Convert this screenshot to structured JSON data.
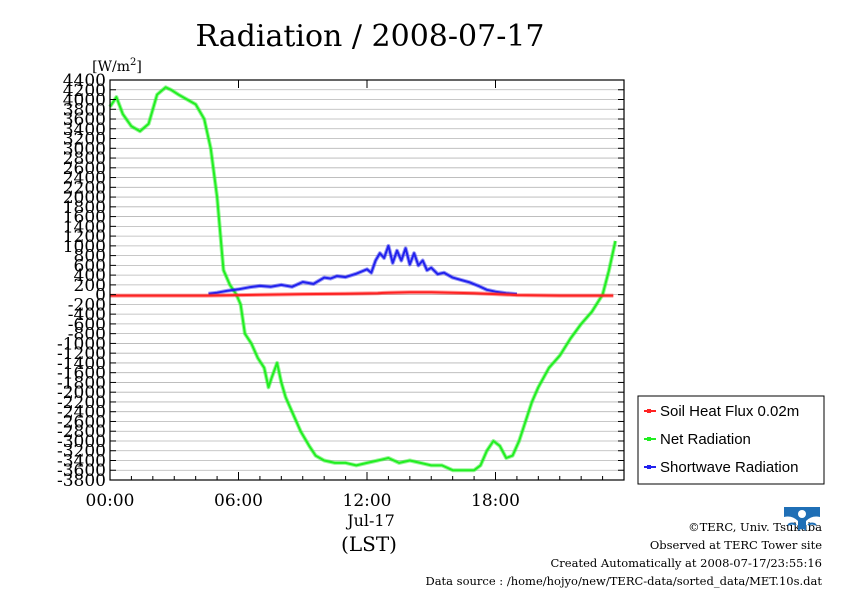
{
  "chart_data": {
    "type": "line",
    "title": "Radiation / 2008-07-17",
    "ylabel_unit": "[W/m",
    "ylabel_sup": "2",
    "ylabel_close": "]",
    "ylim": [
      -3800,
      4400
    ],
    "ytick_step": 200,
    "xlim": [
      0,
      24
    ],
    "xticks": [
      {
        "x": 0,
        "label": "00:00"
      },
      {
        "x": 6,
        "label": "06:00"
      },
      {
        "x": 12,
        "label": "12:00"
      },
      {
        "x": 18,
        "label": "18:00"
      }
    ],
    "xdate_label": "Jul-17",
    "xlabel": "(LST)",
    "grid": true,
    "legend_position": "right",
    "series": [
      {
        "name": "Soil Heat Flux 0.02m",
        "color": "#ff2222",
        "x": [
          0,
          4.5,
          6,
          9,
          11,
          12.5,
          13,
          14,
          15,
          16,
          17,
          18,
          19,
          21,
          23.5
        ],
        "y": [
          -20,
          -20,
          -10,
          10,
          20,
          30,
          40,
          50,
          50,
          40,
          30,
          10,
          -10,
          -20,
          -20
        ]
      },
      {
        "name": "Net Radiation",
        "color": "#22ee22",
        "x": [
          0,
          0.3,
          0.6,
          1.0,
          1.4,
          1.8,
          2.2,
          2.6,
          2.85,
          3.2,
          3.6,
          4.0,
          4.4,
          4.7,
          5.0,
          5.3,
          5.6,
          5.9,
          6.1,
          6.3,
          6.6,
          6.9,
          7.2,
          7.4,
          7.55,
          7.8,
          8.0,
          8.2,
          8.5,
          8.9,
          9.3,
          9.6,
          10.0,
          10.5,
          11.0,
          11.5,
          12.0,
          12.5,
          13.0,
          13.5,
          14.0,
          14.5,
          15.0,
          15.5,
          16.0,
          16.5,
          17.0,
          17.3,
          17.6,
          17.9,
          18.2,
          18.5,
          18.8,
          19.1,
          19.4,
          19.7,
          20.0,
          20.5,
          21.0,
          21.5,
          22.0,
          22.5,
          23.0,
          23.3,
          23.6
        ],
        "y": [
          3850,
          4050,
          3700,
          3450,
          3350,
          3500,
          4100,
          4250,
          4200,
          4100,
          4000,
          3900,
          3600,
          3000,
          2000,
          500,
          200,
          0,
          -200,
          -800,
          -1000,
          -1300,
          -1500,
          -1900,
          -1700,
          -1400,
          -1800,
          -2100,
          -2400,
          -2800,
          -3100,
          -3300,
          -3400,
          -3450,
          -3450,
          -3500,
          -3450,
          -3400,
          -3350,
          -3450,
          -3400,
          -3450,
          -3500,
          -3500,
          -3600,
          -3600,
          -3600,
          -3500,
          -3200,
          -3000,
          -3100,
          -3350,
          -3300,
          -3000,
          -2600,
          -2200,
          -1900,
          -1500,
          -1250,
          -900,
          -600,
          -350,
          0,
          500,
          1100
        ]
      },
      {
        "name": "Shortwave Radiation",
        "color": "#2222ee",
        "x": [
          4.6,
          5.0,
          5.5,
          6.0,
          6.5,
          7.0,
          7.5,
          8.0,
          8.5,
          9.0,
          9.5,
          10.0,
          10.3,
          10.6,
          11.0,
          11.5,
          12.0,
          12.2,
          12.4,
          12.6,
          12.8,
          13.0,
          13.2,
          13.4,
          13.6,
          13.8,
          14.0,
          14.2,
          14.4,
          14.6,
          14.8,
          15.0,
          15.3,
          15.6,
          16.0,
          16.4,
          16.8,
          17.2,
          17.6,
          18.0,
          18.5,
          19.0
        ],
        "y": [
          20,
          40,
          80,
          110,
          150,
          180,
          160,
          200,
          160,
          260,
          220,
          350,
          330,
          380,
          360,
          430,
          520,
          450,
          700,
          850,
          750,
          1000,
          650,
          900,
          700,
          950,
          620,
          850,
          600,
          700,
          500,
          550,
          420,
          450,
          350,
          300,
          250,
          180,
          100,
          60,
          30,
          10
        ]
      }
    ]
  },
  "credits": {
    "copyright": "©TERC, Univ. Tsukuba",
    "observed": "Observed at TERC Tower site",
    "created": "Created Automatically at 2008-07-17/23:55:16",
    "source": "Data source : /home/hojyo/new/TERC-data/sorted_data/MET.10s.dat"
  },
  "logo": {
    "name": "terc-logo",
    "color": "#1f6fb6"
  }
}
